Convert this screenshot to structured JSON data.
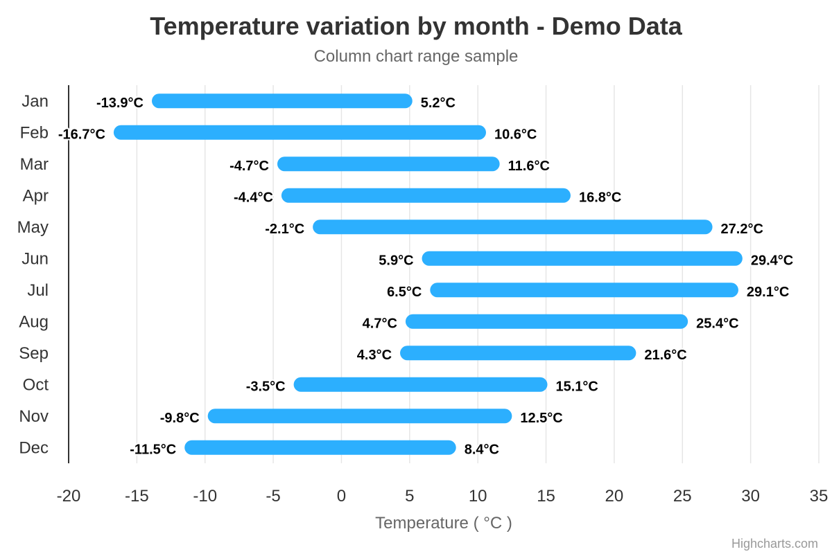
{
  "chart_data": {
    "type": "bar",
    "subtype": "columnrange",
    "orientation": "horizontal",
    "title": "Temperature variation by month - Demo Data",
    "subtitle": "Column chart range sample",
    "xlabel": "",
    "ylabel": "Temperature ( °C )",
    "xlim": [
      -20,
      35
    ],
    "ticks": [
      -20,
      -15,
      -10,
      -5,
      0,
      5,
      10,
      15,
      20,
      25,
      30,
      35
    ],
    "grid": true,
    "legend": "none",
    "unit_suffix": "°C",
    "categories": [
      "Jan",
      "Feb",
      "Mar",
      "Apr",
      "May",
      "Jun",
      "Jul",
      "Aug",
      "Sep",
      "Oct",
      "Nov",
      "Dec"
    ],
    "series": [
      {
        "low": [
          -13.9,
          -16.7,
          -4.7,
          -4.4,
          -2.1,
          5.9,
          6.5,
          4.7,
          4.3,
          -3.5,
          -9.8,
          -11.5
        ],
        "high": [
          5.2,
          10.6,
          11.6,
          16.8,
          27.2,
          29.4,
          29.1,
          25.4,
          21.6,
          15.1,
          12.5,
          8.4
        ],
        "color": "#2caffe"
      }
    ],
    "credits": "Highcharts.com"
  }
}
